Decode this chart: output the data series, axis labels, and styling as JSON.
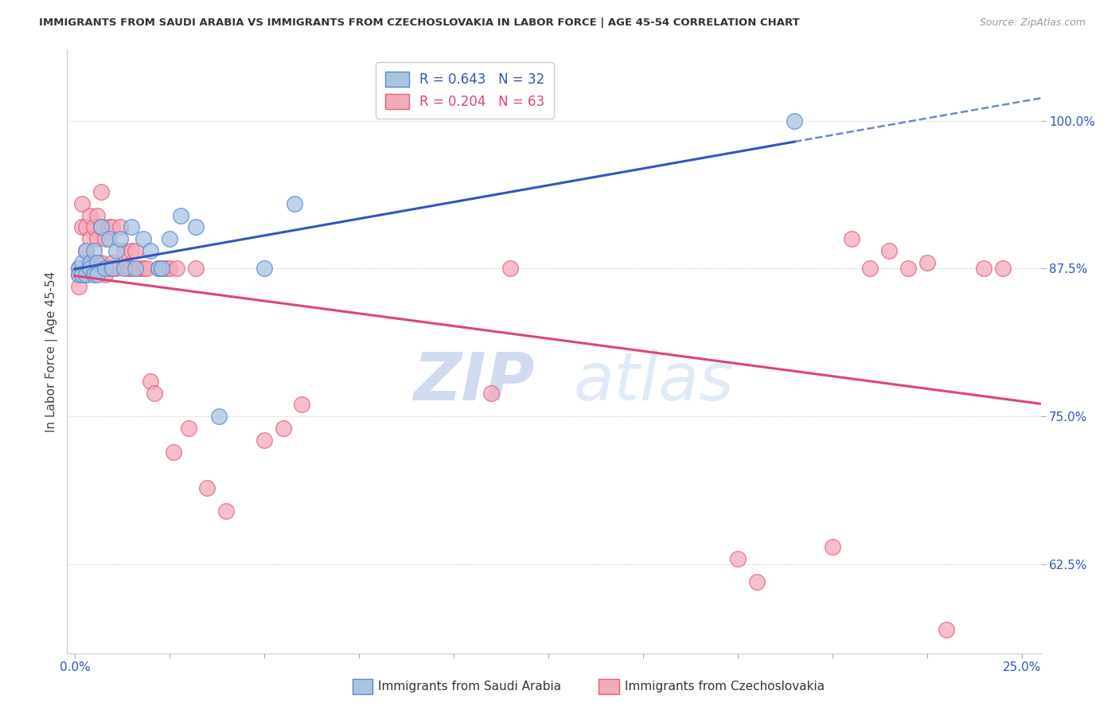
{
  "title": "IMMIGRANTS FROM SAUDI ARABIA VS IMMIGRANTS FROM CZECHOSLOVAKIA IN LABOR FORCE | AGE 45-54 CORRELATION CHART",
  "source": "Source: ZipAtlas.com",
  "ylabel": "In Labor Force | Age 45-54",
  "x_ticks": [
    "0.0%",
    "",
    "",
    "",
    "",
    "",
    "",
    "",
    "",
    "",
    "25.0%"
  ],
  "x_tick_vals": [
    0.0,
    0.025,
    0.05,
    0.075,
    0.1,
    0.125,
    0.15,
    0.175,
    0.2,
    0.225,
    0.25
  ],
  "y_ticks": [
    "62.5%",
    "75.0%",
    "87.5%",
    "100.0%"
  ],
  "y_tick_vals": [
    0.625,
    0.75,
    0.875,
    1.0
  ],
  "xlim": [
    -0.002,
    0.255
  ],
  "ylim": [
    0.55,
    1.06
  ],
  "saudi_color": "#aac4e2",
  "czech_color": "#f5aaba",
  "saudi_edge": "#5588cc",
  "czech_edge": "#e06080",
  "line_saudi_color": "#3355bb",
  "line_czech_color": "#dd4477",
  "legend_text_saudi": "R = 0.643   N = 32",
  "legend_text_czech": "R = 0.204   N = 63",
  "legend_label_saudi": "Immigrants from Saudi Arabia",
  "legend_label_czech": "Immigrants from Czechoslovakia",
  "saudi_x": [
    0.001,
    0.001,
    0.002,
    0.002,
    0.003,
    0.003,
    0.004,
    0.004,
    0.005,
    0.005,
    0.006,
    0.006,
    0.007,
    0.008,
    0.009,
    0.01,
    0.011,
    0.012,
    0.013,
    0.015,
    0.016,
    0.018,
    0.02,
    0.022,
    0.023,
    0.025,
    0.028,
    0.032,
    0.038,
    0.05,
    0.058,
    0.19
  ],
  "saudi_y": [
    0.875,
    0.87,
    0.88,
    0.87,
    0.89,
    0.87,
    0.88,
    0.875,
    0.89,
    0.87,
    0.88,
    0.87,
    0.91,
    0.875,
    0.9,
    0.875,
    0.89,
    0.9,
    0.875,
    0.91,
    0.875,
    0.9,
    0.89,
    0.875,
    0.875,
    0.9,
    0.92,
    0.91,
    0.75,
    0.875,
    0.93,
    1.0
  ],
  "czech_x": [
    0.001,
    0.001,
    0.001,
    0.002,
    0.002,
    0.003,
    0.003,
    0.003,
    0.004,
    0.004,
    0.004,
    0.005,
    0.005,
    0.006,
    0.006,
    0.006,
    0.007,
    0.007,
    0.007,
    0.008,
    0.008,
    0.009,
    0.009,
    0.01,
    0.01,
    0.011,
    0.012,
    0.013,
    0.014,
    0.015,
    0.015,
    0.016,
    0.017,
    0.018,
    0.019,
    0.02,
    0.021,
    0.022,
    0.023,
    0.024,
    0.025,
    0.026,
    0.027,
    0.03,
    0.032,
    0.035,
    0.04,
    0.05,
    0.055,
    0.06,
    0.11,
    0.115,
    0.175,
    0.18,
    0.2,
    0.205,
    0.21,
    0.215,
    0.22,
    0.225,
    0.23,
    0.24,
    0.245
  ],
  "czech_y": [
    0.875,
    0.87,
    0.86,
    0.93,
    0.91,
    0.91,
    0.89,
    0.87,
    0.92,
    0.9,
    0.88,
    0.91,
    0.88,
    0.92,
    0.9,
    0.88,
    0.94,
    0.91,
    0.88,
    0.9,
    0.87,
    0.91,
    0.875,
    0.91,
    0.88,
    0.875,
    0.91,
    0.89,
    0.875,
    0.89,
    0.875,
    0.89,
    0.875,
    0.875,
    0.875,
    0.78,
    0.77,
    0.875,
    0.875,
    0.875,
    0.875,
    0.72,
    0.875,
    0.74,
    0.875,
    0.69,
    0.67,
    0.73,
    0.74,
    0.76,
    0.77,
    0.875,
    0.63,
    0.61,
    0.64,
    0.9,
    0.875,
    0.89,
    0.875,
    0.88,
    0.57,
    0.875,
    0.875
  ]
}
